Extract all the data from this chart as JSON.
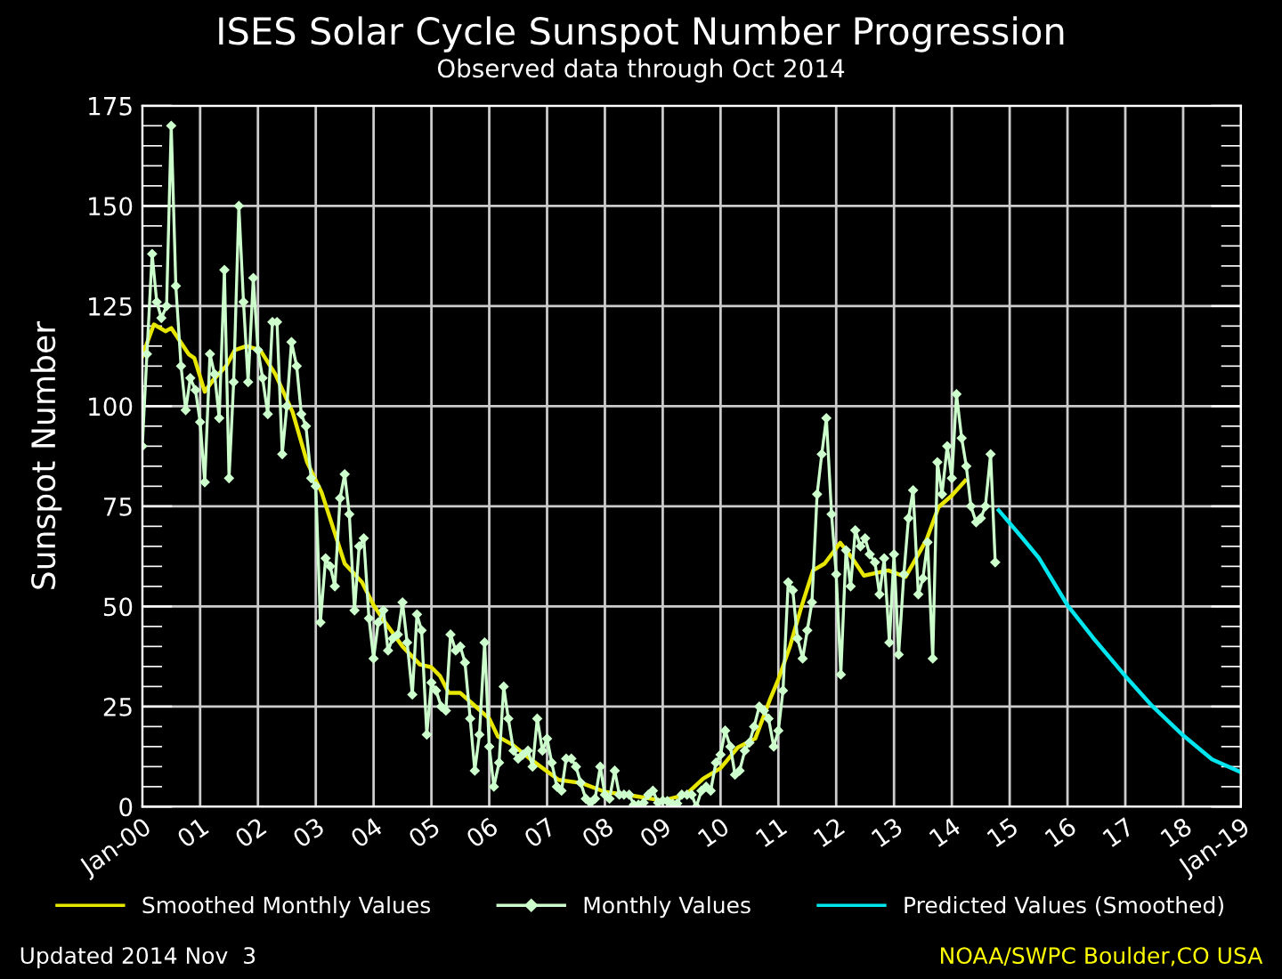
{
  "chart_data": {
    "type": "line",
    "title": "ISES Solar Cycle Sunspot Number Progression",
    "subtitle": "Observed data through Oct 2014",
    "ylabel": "Sunspot Number",
    "xlim": [
      2000,
      2019
    ],
    "ylim": [
      0,
      175
    ],
    "xticks": [
      {
        "value": 2000,
        "label": "Jan-00"
      },
      {
        "value": 2001,
        "label": "01"
      },
      {
        "value": 2002,
        "label": "02"
      },
      {
        "value": 2003,
        "label": "03"
      },
      {
        "value": 2004,
        "label": "04"
      },
      {
        "value": 2005,
        "label": "05"
      },
      {
        "value": 2006,
        "label": "06"
      },
      {
        "value": 2007,
        "label": "07"
      },
      {
        "value": 2008,
        "label": "08"
      },
      {
        "value": 2009,
        "label": "09"
      },
      {
        "value": 2010,
        "label": "10"
      },
      {
        "value": 2011,
        "label": "11"
      },
      {
        "value": 2012,
        "label": "12"
      },
      {
        "value": 2013,
        "label": "13"
      },
      {
        "value": 2014,
        "label": "14"
      },
      {
        "value": 2015,
        "label": "15"
      },
      {
        "value": 2016,
        "label": "16"
      },
      {
        "value": 2017,
        "label": "17"
      },
      {
        "value": 2018,
        "label": "18"
      },
      {
        "value": 2019,
        "label": "Jan-19"
      }
    ],
    "yticks": [
      0,
      25,
      50,
      75,
      100,
      125,
      150,
      175
    ],
    "grid": true,
    "legend": "bottom",
    "annotations": [
      "Updated 2014 Nov  3",
      "NOAA/SWPC Boulder,CO USA"
    ],
    "series": [
      {
        "name": "Smoothed Monthly Values",
        "color": "#e6e600",
        "marker": "none",
        "x": [
          2000.0,
          2000.2,
          2000.4,
          2000.5,
          2000.8,
          2000.9,
          2001.08,
          2001.23,
          2001.45,
          2001.6,
          2001.8,
          2002.04,
          2002.3,
          2002.6,
          2002.85,
          2003.1,
          2003.3,
          2003.5,
          2003.8,
          2004.0,
          2004.2,
          2004.5,
          2004.8,
          2005.0,
          2005.15,
          2005.3,
          2005.5,
          2005.75,
          2006.0,
          2006.15,
          2006.4,
          2006.7,
          2007.2,
          2007.6,
          2008.0,
          2008.5,
          2009.0,
          2009.4,
          2009.7,
          2010.0,
          2010.3,
          2010.6,
          2010.85,
          2011.0,
          2011.2,
          2011.4,
          2011.6,
          2011.8,
          2012.07,
          2012.28,
          2012.48,
          2012.9,
          2013.2,
          2013.56,
          2013.77,
          2014.0,
          2014.23
        ],
        "values": [
          112.5,
          120.4,
          118.7,
          119.5,
          113,
          112,
          103.6,
          106.6,
          110,
          114,
          115,
          114,
          108,
          98.5,
          86,
          78.5,
          69.6,
          60.7,
          56,
          50.3,
          46,
          40,
          35.5,
          34.8,
          32.6,
          28.4,
          28.4,
          25.2,
          22,
          17.5,
          15.5,
          12,
          6.7,
          5.9,
          3.7,
          2.7,
          1.5,
          3,
          7,
          9.6,
          14.8,
          17,
          26.6,
          31.8,
          40,
          50,
          59,
          60.7,
          65.9,
          62,
          57.7,
          59,
          57.4,
          66.6,
          74.8,
          77.7,
          81.4
        ]
      },
      {
        "name": "Monthly Values",
        "color": "#ccffcc",
        "marker": "diamond",
        "x": [
          2000.0,
          2000.08,
          2000.17,
          2000.25,
          2000.33,
          2000.42,
          2000.5,
          2000.58,
          2000.67,
          2000.75,
          2000.83,
          2000.92,
          2001.0,
          2001.08,
          2001.17,
          2001.25,
          2001.33,
          2001.42,
          2001.5,
          2001.58,
          2001.67,
          2001.75,
          2001.83,
          2001.92,
          2002.0,
          2002.08,
          2002.17,
          2002.25,
          2002.33,
          2002.42,
          2002.5,
          2002.58,
          2002.67,
          2002.75,
          2002.83,
          2002.92,
          2003.0,
          2003.08,
          2003.17,
          2003.25,
          2003.33,
          2003.42,
          2003.5,
          2003.58,
          2003.67,
          2003.75,
          2003.83,
          2003.92,
          2004.0,
          2004.08,
          2004.17,
          2004.25,
          2004.33,
          2004.42,
          2004.5,
          2004.58,
          2004.67,
          2004.75,
          2004.83,
          2004.92,
          2005.0,
          2005.08,
          2005.17,
          2005.25,
          2005.33,
          2005.42,
          2005.5,
          2005.58,
          2005.67,
          2005.75,
          2005.83,
          2005.92,
          2006.0,
          2006.08,
          2006.17,
          2006.25,
          2006.33,
          2006.42,
          2006.5,
          2006.58,
          2006.67,
          2006.75,
          2006.83,
          2006.92,
          2007.0,
          2007.08,
          2007.17,
          2007.25,
          2007.33,
          2007.42,
          2007.5,
          2007.58,
          2007.67,
          2007.75,
          2007.83,
          2007.92,
          2008.0,
          2008.08,
          2008.17,
          2008.25,
          2008.33,
          2008.42,
          2008.5,
          2008.58,
          2008.67,
          2008.75,
          2008.83,
          2008.92,
          2009.0,
          2009.08,
          2009.17,
          2009.25,
          2009.33,
          2009.42,
          2009.5,
          2009.58,
          2009.67,
          2009.75,
          2009.83,
          2009.92,
          2010.0,
          2010.08,
          2010.17,
          2010.25,
          2010.33,
          2010.42,
          2010.5,
          2010.58,
          2010.67,
          2010.75,
          2010.83,
          2010.92,
          2011.0,
          2011.08,
          2011.17,
          2011.25,
          2011.33,
          2011.42,
          2011.5,
          2011.58,
          2011.67,
          2011.75,
          2011.83,
          2011.92,
          2012.0,
          2012.08,
          2012.17,
          2012.25,
          2012.33,
          2012.42,
          2012.5,
          2012.58,
          2012.67,
          2012.75,
          2012.83,
          2012.92,
          2013.0,
          2013.08,
          2013.17,
          2013.25,
          2013.33,
          2013.42,
          2013.5,
          2013.58,
          2013.67,
          2013.75,
          2013.83,
          2013.92,
          2014.0,
          2014.08,
          2014.17,
          2014.25,
          2014.33,
          2014.42,
          2014.5,
          2014.58,
          2014.67,
          2014.75
        ],
        "values": [
          90,
          113,
          138,
          126,
          122,
          125,
          170,
          130,
          110,
          99,
          107,
          104,
          96,
          81,
          113,
          108,
          97,
          134,
          82,
          106,
          150,
          126,
          106,
          132,
          114,
          107,
          98,
          121,
          121,
          88,
          100,
          116,
          110,
          98,
          95,
          82,
          80,
          46,
          62,
          60,
          55,
          77,
          83,
          73,
          49,
          65,
          67,
          47,
          37,
          46,
          49,
          39,
          42,
          43,
          51,
          41,
          28,
          48,
          44,
          18,
          31,
          29,
          25,
          24,
          43,
          39,
          40,
          36,
          22,
          9,
          18,
          41,
          15,
          5,
          11,
          30,
          22,
          14,
          12,
          13,
          14,
          10,
          22,
          14,
          17,
          11,
          5,
          4,
          12,
          12,
          10,
          6,
          2,
          1,
          2,
          10,
          3,
          2,
          9,
          3,
          3,
          3,
          0.5,
          0.5,
          1,
          3,
          4,
          1,
          1.5,
          1.4,
          0.7,
          0.8,
          3,
          3,
          3,
          0,
          4,
          5,
          4,
          11,
          13,
          19,
          15,
          8,
          9,
          14,
          16,
          20,
          25,
          24,
          22,
          15,
          19,
          29,
          56,
          54,
          42,
          37,
          44,
          51,
          78,
          88,
          97,
          73,
          58,
          33,
          64,
          55,
          69,
          65,
          67,
          63,
          61,
          53,
          62,
          41,
          63,
          38,
          58,
          72,
          79,
          53,
          57,
          66,
          37,
          86,
          78,
          90,
          82,
          103,
          92,
          85,
          75,
          71,
          72,
          75,
          88,
          61
        ]
      },
      {
        "name": "Predicted Values (Smoothed)",
        "color": "#00e5ee",
        "marker": "none",
        "x": [
          2014.81,
          2015.2,
          2015.5,
          2016.0,
          2016.44,
          2017.0,
          2017.46,
          2018.0,
          2018.5,
          2019.0
        ],
        "values": [
          74,
          67.4,
          62.2,
          50.3,
          42.2,
          32.6,
          25.2,
          17.8,
          11.8,
          8.6
        ]
      }
    ]
  }
}
